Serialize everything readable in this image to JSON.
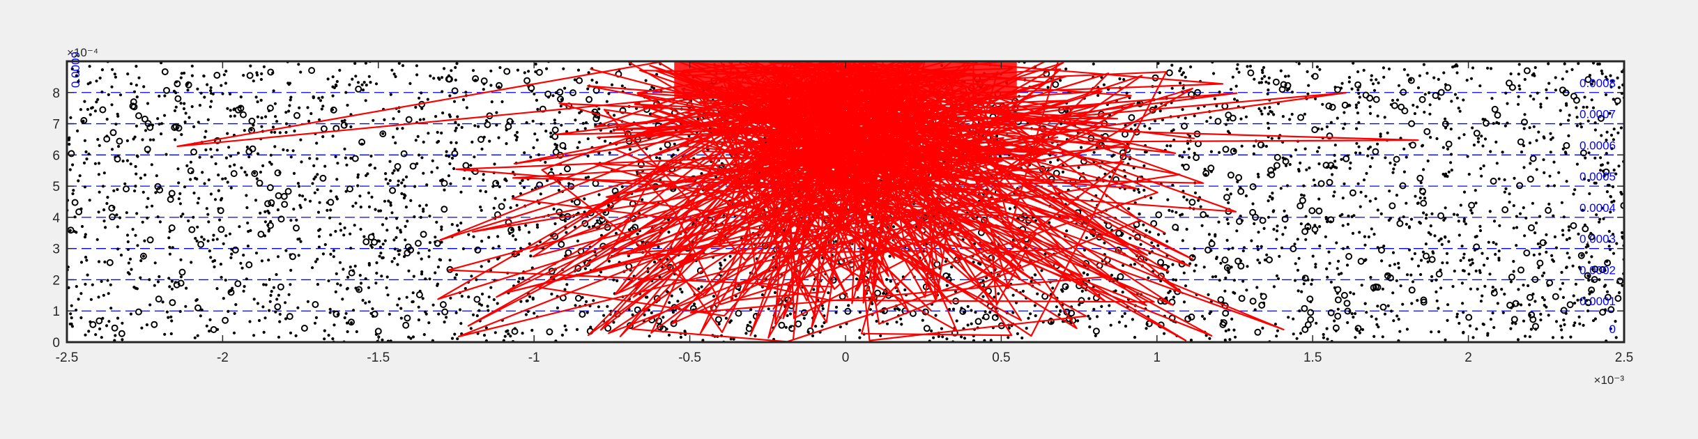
{
  "figure": {
    "background": "#f0f0f0",
    "axes_background": "#ffffff"
  },
  "chart_data": {
    "type": "scatter",
    "title": "",
    "xlabel": "",
    "ylabel": "",
    "xlim": [
      -0.0025,
      0.0025
    ],
    "ylim": [
      0,
      0.0009
    ],
    "x_exponent_label": "×10⁻³",
    "y_exponent_label": "×10⁻⁴",
    "x_ticks": [
      -2.5,
      -2,
      -1.5,
      -1,
      -0.5,
      0,
      0.5,
      1,
      1.5,
      2,
      2.5
    ],
    "x_tick_labels": [
      "-2.5",
      "-2",
      "-1.5",
      "-1",
      "-0.5",
      "0",
      "0.5",
      "1",
      "1.5",
      "2",
      "2.5"
    ],
    "y_ticks": [
      0,
      1,
      2,
      3,
      4,
      5,
      6,
      7,
      8
    ],
    "y_tick_labels": [
      "0",
      "1",
      "2",
      "3",
      "4",
      "5",
      "6",
      "7",
      "8"
    ],
    "grid": false,
    "level_lines": {
      "color": "#0000ff",
      "style": "dashed",
      "values": [
        0.0001,
        0.0002,
        0.0003,
        0.0004,
        0.0005,
        0.0006,
        0.0007,
        0.0008
      ],
      "labels": [
        "0.0001",
        "0.0002",
        "0.0003",
        "0.0004",
        "0.0005",
        "0.0006",
        "0.0007",
        "0.0008"
      ],
      "top_label": "0.0009",
      "bottom_label": "0"
    },
    "series": [
      {
        "marker": "dot",
        "color": "#000000",
        "count": 3600
      },
      {
        "marker": "open-circle",
        "color": "#000000",
        "count": 700
      },
      {
        "marker": "line-path",
        "color": "#ff0000",
        "x_mean": 0.0,
        "x_spread": 0.0004,
        "concentration": "upper-center",
        "count": 900
      }
    ]
  }
}
